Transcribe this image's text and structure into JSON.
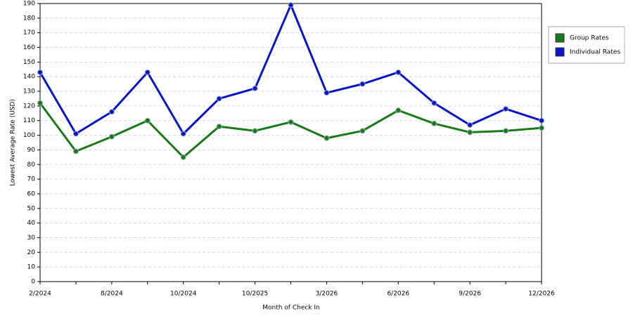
{
  "chart_data": {
    "type": "line",
    "x_label": "Month of Check In",
    "y_label": "Lowest Average Rate (USD)",
    "categories": [
      "2/2024",
      null,
      "8/2024",
      null,
      "10/2024",
      null,
      "10/2025",
      null,
      "3/2026",
      null,
      "6/2026",
      null,
      "9/2026",
      null,
      "12/2026"
    ],
    "series": [
      {
        "name": "Group Rates",
        "color": "#1a7a1a",
        "values": [
          122,
          89,
          99,
          110,
          85,
          106,
          103,
          109,
          98,
          103,
          117,
          108,
          102,
          103,
          105
        ]
      },
      {
        "name": "Individual Rates",
        "color": "#0a14c8",
        "values": [
          143,
          101,
          116,
          143,
          101,
          125,
          132,
          189,
          129,
          135,
          143,
          122,
          107,
          118,
          110
        ]
      }
    ],
    "ylim": [
      0,
      190
    ],
    "yticks": [
      0,
      10,
      20,
      30,
      40,
      50,
      60,
      70,
      80,
      90,
      100,
      110,
      120,
      130,
      140,
      150,
      160,
      170,
      180,
      190
    ],
    "grid": true,
    "legend": "right"
  }
}
